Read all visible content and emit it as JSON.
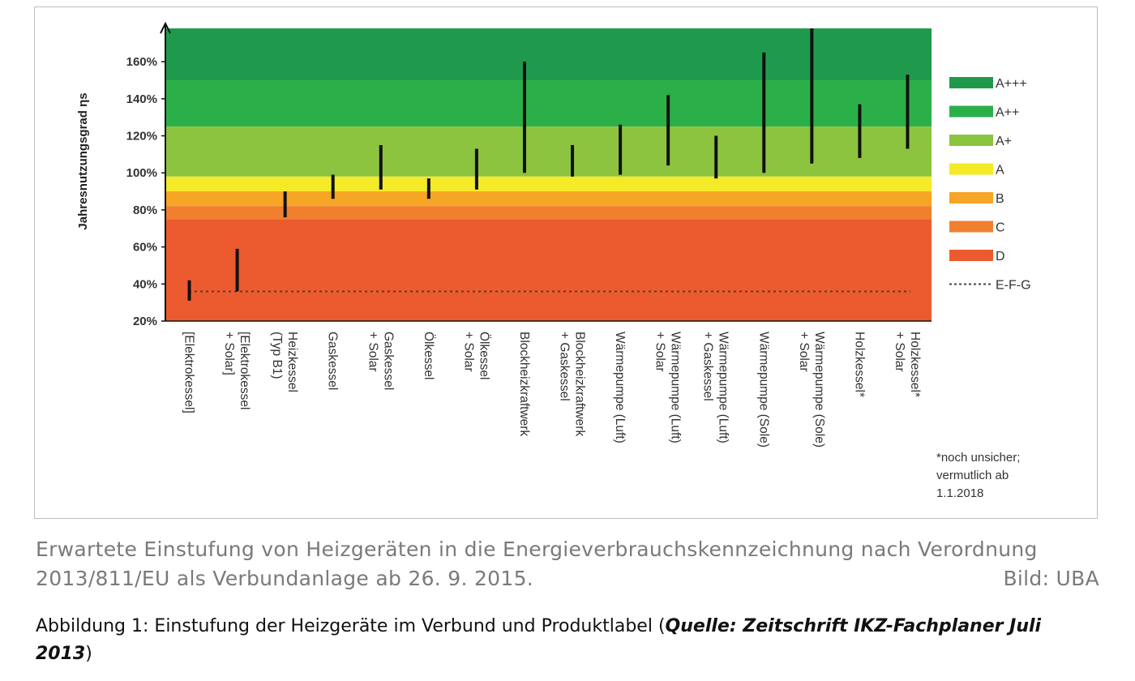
{
  "chart_data": {
    "type": "bar",
    "subtype": "range",
    "ylabel": "Jahresnutzungsgrad ηs",
    "ylim": [
      20,
      178
    ],
    "y_ticks": [
      {
        "value": 20,
        "label": "20%"
      },
      {
        "value": 40,
        "label": "40%"
      },
      {
        "value": 60,
        "label": "60%"
      },
      {
        "value": 80,
        "label": "80%"
      },
      {
        "value": 100,
        "label": "100%"
      },
      {
        "value": 120,
        "label": "120%"
      },
      {
        "value": 140,
        "label": "140%"
      },
      {
        "value": 160,
        "label": "160%"
      }
    ],
    "categories": [
      {
        "lines": [
          "[Elektrokessel]"
        ],
        "low": 31,
        "high": 42
      },
      {
        "lines": [
          "[Elektrokessel",
          "+ Solar]"
        ],
        "low": 36,
        "high": 59
      },
      {
        "lines": [
          "Heizkessel",
          "(Typ B1)"
        ],
        "low": 76,
        "high": 90
      },
      {
        "lines": [
          "Gaskessel"
        ],
        "low": 86,
        "high": 99
      },
      {
        "lines": [
          "Gaskessel",
          "+ Solar"
        ],
        "low": 91,
        "high": 115
      },
      {
        "lines": [
          "Ölkessel"
        ],
        "low": 86,
        "high": 97
      },
      {
        "lines": [
          "Ölkessel",
          "+ Solar"
        ],
        "low": 91,
        "high": 113
      },
      {
        "lines": [
          "Blockheizkraftwerk"
        ],
        "low": 100,
        "high": 160
      },
      {
        "lines": [
          "Blockheizkraftwerk",
          "+ Gaskessel"
        ],
        "low": 98,
        "high": 115
      },
      {
        "lines": [
          "Wärmepumpe (Luft)"
        ],
        "low": 99,
        "high": 126
      },
      {
        "lines": [
          "Wärmepumpe (Luft)",
          "+ Solar"
        ],
        "low": 104,
        "high": 142
      },
      {
        "lines": [
          "Wärmepumpe (Luft)",
          "+ Gaskessel"
        ],
        "low": 97,
        "high": 120
      },
      {
        "lines": [
          "Wärmepumpe (Sole)"
        ],
        "low": 100,
        "high": 165
      },
      {
        "lines": [
          "Wärmepumpe (Sole)",
          "+ Solar"
        ],
        "low": 105,
        "high": 178
      },
      {
        "lines": [
          "Holzkessel*"
        ],
        "low": 108,
        "high": 137
      },
      {
        "lines": [
          "Holzkessel*",
          "+ Solar"
        ],
        "low": 113,
        "high": 153
      }
    ],
    "bands": [
      {
        "label": "A+++",
        "from": 150,
        "to": 178,
        "color": "#1f9a4c"
      },
      {
        "label": "A++",
        "from": 125,
        "to": 150,
        "color": "#2bb049"
      },
      {
        "label": "A+",
        "from": 98,
        "to": 125,
        "color": "#8cc43f"
      },
      {
        "label": "A",
        "from": 90,
        "to": 98,
        "color": "#f4ea27"
      },
      {
        "label": "B",
        "from": 82,
        "to": 90,
        "color": "#f6a524"
      },
      {
        "label": "C",
        "from": 75,
        "to": 82,
        "color": "#f07f2e"
      },
      {
        "label": "D",
        "from": 20,
        "to": 75,
        "color": "#ec5b2f"
      }
    ],
    "reference_line": {
      "label": "E-F-G",
      "value": 36,
      "style": "dotted"
    },
    "footnote": [
      "*noch unsicher;",
      "vermutlich ab",
      "1.1.2018"
    ]
  },
  "caption": {
    "line1": "Erwartete Einstufung von Heizgeräten in die Energieverbrauchskennzeichnung nach Verordnung",
    "line2": "2013/811/EU als Verbundanlage ab 26. 9. 2015.",
    "credit": "Bild: UBA"
  },
  "figure_caption": {
    "text": "Abbildung 1: Einstufung der Heizgeräte im Verbund und Produktlabel (",
    "source": "Quelle: Zeitschrift IKZ-Fachplaner Juli 2013",
    "end": ")"
  }
}
